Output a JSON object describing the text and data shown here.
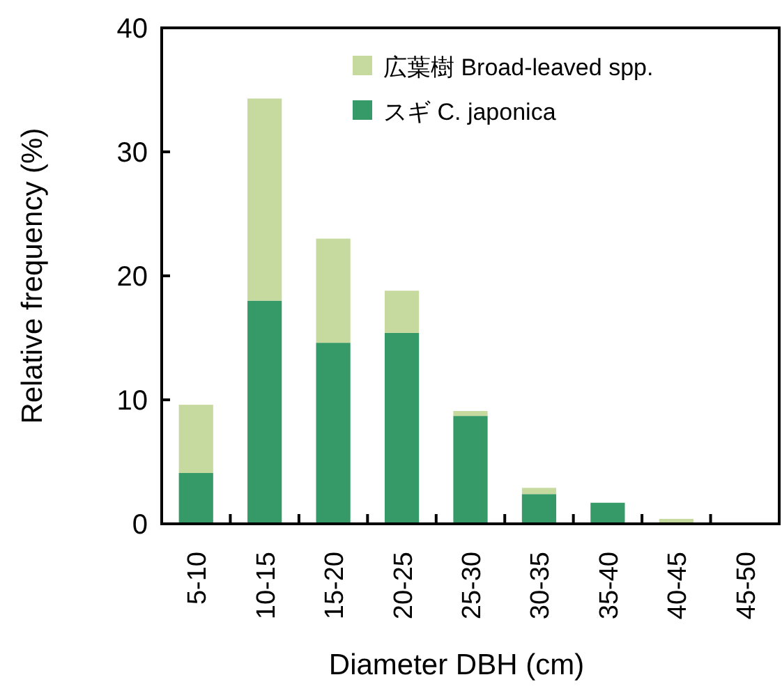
{
  "chart_data": {
    "type": "bar",
    "stacked": true,
    "xlabel": "Diameter  DBH  (cm)",
    "ylabel": "Relative frequency   (%)",
    "categories": [
      "5-10",
      "10-15",
      "15-20",
      "20-25",
      "25-30",
      "30-35",
      "35-40",
      "40-45",
      "45-50"
    ],
    "ylim": [
      0,
      40
    ],
    "yticks": [
      0,
      10,
      20,
      30,
      40
    ],
    "legend": "top right",
    "grid": false,
    "series": [
      {
        "name": "スギ  C. japonica",
        "color": "#359a68",
        "values": [
          4.1,
          18.0,
          14.6,
          15.4,
          8.7,
          2.4,
          1.7,
          0,
          0
        ]
      },
      {
        "name": "広葉樹  Broad-leaved spp.",
        "color": "#c6d99e",
        "values": [
          5.5,
          16.3,
          8.4,
          3.4,
          0.4,
          0.5,
          0,
          0.4,
          0
        ]
      }
    ]
  }
}
